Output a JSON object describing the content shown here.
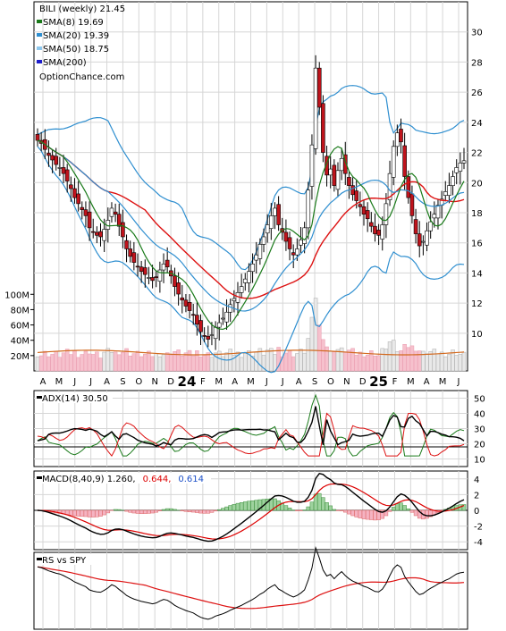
{
  "chart_data": {
    "type": "stock-chart",
    "ticker_label": "BILI (weekly) 21.45",
    "watermark": "OptionChance.com",
    "legend": [
      {
        "label": "SMA(8) 19.69",
        "color": "#1a7a1a"
      },
      {
        "label": "SMA(20) 19.39",
        "color": "#2f8fd0"
      },
      {
        "label": "SMA(50) 18.75",
        "color": "#8ec8ee"
      },
      {
        "label": "SMA(200)",
        "color": "#1c1ccc"
      }
    ],
    "price_axis": {
      "ticks": [
        "10",
        "12",
        "14",
        "16",
        "18",
        "20",
        "22",
        "24",
        "26",
        "28",
        "30"
      ],
      "range": [
        7.5,
        32
      ]
    },
    "volume_axis": {
      "ticks": [
        "20M",
        "40M",
        "60M",
        "80M",
        "100M"
      ],
      "range": [
        0,
        105
      ]
    },
    "x_axis": {
      "labels": [
        "A",
        "M",
        "J",
        "J",
        "A",
        "S",
        "O",
        "N",
        "D",
        "24",
        "F",
        "M",
        "A",
        "M",
        "J",
        "J",
        "A",
        "S",
        "O",
        "N",
        "D",
        "25",
        "F",
        "M",
        "A",
        "M",
        "J"
      ]
    },
    "price_series": {
      "start_week": 0,
      "close": [
        22.8,
        22.6,
        22.2,
        21.8,
        21.5,
        21.2,
        21.0,
        20.6,
        20.1,
        19.6,
        19.0,
        18.6,
        18.2,
        17.8,
        17.0,
        16.7,
        16.5,
        16.4,
        16.9,
        17.5,
        18.3,
        17.9,
        17.1,
        16.4,
        15.6,
        15.1,
        14.7,
        14.4,
        14.1,
        13.9,
        13.7,
        13.5,
        13.7,
        14.2,
        14.6,
        14.4,
        13.8,
        13.1,
        12.6,
        12.2,
        11.8,
        11.5,
        11.2,
        10.6,
        10.1,
        9.8,
        9.6,
        9.9,
        10.4,
        10.7,
        11.0,
        11.4,
        11.9,
        12.3,
        12.7,
        13.1,
        13.6,
        14.1,
        14.6,
        15.2,
        15.9,
        16.4,
        17.2,
        17.8,
        18.3,
        17.2,
        16.7,
        16.1,
        15.6,
        15.2,
        15.6,
        16.2,
        17.0,
        19.5,
        22.5,
        27.6,
        25.0,
        22.0,
        20.5,
        20.9,
        19.8,
        20.8,
        21.6,
        20.6,
        19.8,
        19.2,
        18.8,
        18.4,
        17.9,
        17.6,
        17.1,
        16.6,
        16.5,
        17.2,
        18.6,
        20.6,
        22.4,
        23.3,
        22.7,
        20.4,
        19.0,
        17.8,
        16.6,
        15.8,
        16.1,
        16.8,
        17.4,
        17.9,
        18.5,
        18.9,
        19.4,
        19.8,
        20.4,
        21.0,
        21.3,
        21.45
      ],
      "sma8_last": 19.69,
      "sma20_last": 19.39,
      "sma50_last": 18.75
    },
    "adx": {
      "label": "ADX(14) 30.50",
      "ticks": [
        "10",
        "20",
        "30",
        "40",
        "50"
      ],
      "range": [
        5,
        55
      ],
      "last": 30.5
    },
    "macd": {
      "label": "MACD(8,40,9) 1.260,",
      "macd_value": "0.644,",
      "signal_value": "0.614",
      "macd_color": "#dd0000",
      "signal_color": "#1c50c8",
      "ticks": [
        "-4",
        "-2",
        "0",
        "2",
        "4"
      ],
      "range": [
        -5,
        5
      ]
    },
    "rs": {
      "label": "RS vs SPY"
    }
  }
}
